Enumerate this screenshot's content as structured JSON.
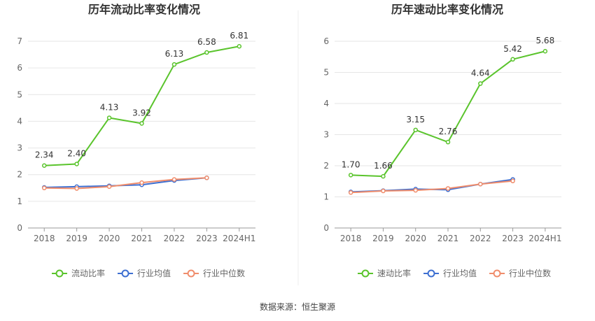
{
  "chart_data": [
    {
      "type": "line",
      "title": "历年流动比率变化情况",
      "categories": [
        "2018",
        "2019",
        "2020",
        "2021",
        "2022",
        "2023",
        "2024H1"
      ],
      "ylim": [
        0,
        7
      ],
      "yticks": [
        "0",
        "1",
        "2",
        "3",
        "4",
        "5",
        "6",
        "7"
      ],
      "grid": true,
      "legend_position": "bottom",
      "series": [
        {
          "name": "流动比率",
          "color": "#5ac42c",
          "values": [
            2.34,
            2.4,
            4.13,
            3.92,
            6.13,
            6.58,
            6.81
          ],
          "labels": [
            "2.34",
            "2.40",
            "4.13",
            "3.92",
            "6.13",
            "6.58",
            "6.81"
          ]
        },
        {
          "name": "行业均值",
          "color": "#3d6fd1",
          "values": [
            1.52,
            1.55,
            1.58,
            1.62,
            1.78,
            1.88,
            null
          ]
        },
        {
          "name": "行业中位数",
          "color": "#f08d6c",
          "values": [
            1.5,
            1.48,
            1.55,
            1.7,
            1.82,
            1.88,
            null
          ]
        }
      ]
    },
    {
      "type": "line",
      "title": "历年速动比率变化情况",
      "categories": [
        "2018",
        "2019",
        "2020",
        "2021",
        "2022",
        "2023",
        "2024H1"
      ],
      "ylim": [
        0,
        6
      ],
      "yticks": [
        "0",
        "1",
        "2",
        "3",
        "4",
        "5",
        "6"
      ],
      "grid": true,
      "legend_position": "bottom",
      "series": [
        {
          "name": "速动比率",
          "color": "#5ac42c",
          "values": [
            1.7,
            1.66,
            3.15,
            2.76,
            4.64,
            5.42,
            5.68
          ],
          "labels": [
            "1.70",
            "1.66",
            "3.15",
            "2.76",
            "4.64",
            "5.42",
            "5.68"
          ]
        },
        {
          "name": "行业均值",
          "color": "#3d6fd1",
          "values": [
            1.16,
            1.2,
            1.25,
            1.23,
            1.41,
            1.56,
            null
          ]
        },
        {
          "name": "行业中位数",
          "color": "#f08d6c",
          "values": [
            1.14,
            1.19,
            1.21,
            1.27,
            1.41,
            1.51,
            null
          ]
        }
      ]
    }
  ],
  "footer": {
    "source": "数据来源：恒生聚源"
  }
}
